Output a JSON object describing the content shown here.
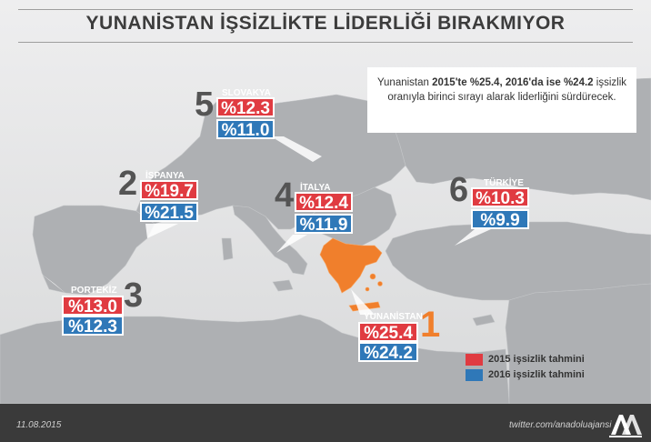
{
  "title": "YUNANİSTAN İŞSİZLİKTE LİDERLİĞİ BIRAKMIYOR",
  "description": {
    "part1": "Yunanistan ",
    "bold1": "2015'te %25.4, 2016'da ise %24.2",
    "part2": " işsizlik oranıyla birinci sırayı alarak liderliğini sürdürecek."
  },
  "countries": [
    {
      "rank": "1",
      "name": "YUNANİSTAN",
      "v2015": "%25.4",
      "v2016": "%24.2"
    },
    {
      "rank": "2",
      "name": "İSPANYA",
      "v2015": "%19.7",
      "v2016": "%21.5"
    },
    {
      "rank": "3",
      "name": "PORTEKİZ",
      "v2015": "%13.0",
      "v2016": "%12.3"
    },
    {
      "rank": "4",
      "name": "İTALYA",
      "v2015": "%12.4",
      "v2016": "%11.9"
    },
    {
      "rank": "5",
      "name": "SLOVAKYA",
      "v2015": "%12.3",
      "v2016": "%11.0"
    },
    {
      "rank": "6",
      "name": "TÜRKİYE",
      "v2015": "%10.3",
      "v2016": "%9.9"
    }
  ],
  "legend": {
    "item2015": "2015 işsizlik tahmini",
    "item2016": "2016 işsizlik tahmini"
  },
  "colors": {
    "v2015": "#e03b41",
    "v2016": "#2f78b8",
    "greece": "#f07f2c",
    "land": "#a9abae",
    "sea": "#e6e7e8",
    "footer": "#3a3a3a"
  },
  "footer": {
    "date": "11.08.2015",
    "handle": "twitter.com/anadoluajansi"
  },
  "logo_icon": "anadolu-agency-logo-icon"
}
